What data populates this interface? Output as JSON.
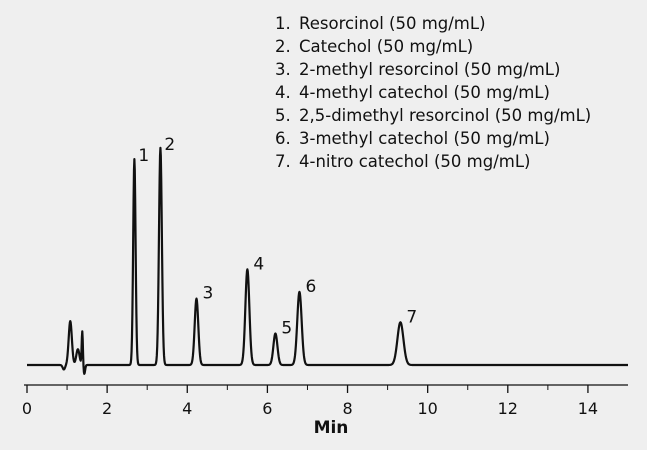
{
  "chart_data": {
    "type": "line",
    "title": "",
    "xlabel": "Min",
    "ylabel": "",
    "xlim": [
      0,
      15
    ],
    "x_ticks": [
      "0",
      "2",
      "4",
      "6",
      "8",
      "10",
      "12",
      "14"
    ],
    "grid": false,
    "legend_position": "top-right",
    "line_color": "#111111",
    "background_color": "#efefef",
    "peaks": [
      {
        "label": "1",
        "x": 2.68,
        "height": 0.915,
        "width": 0.03
      },
      {
        "label": "2",
        "x": 3.33,
        "height": 0.965,
        "width": 0.036
      },
      {
        "label": "3",
        "x": 4.23,
        "height": 0.295,
        "width": 0.045
      },
      {
        "label": "4",
        "x": 5.5,
        "height": 0.425,
        "width": 0.05
      },
      {
        "label": "5",
        "x": 6.2,
        "height": 0.14,
        "width": 0.05
      },
      {
        "label": "6",
        "x": 6.8,
        "height": 0.325,
        "width": 0.055
      },
      {
        "label": "7",
        "x": 9.32,
        "height": 0.19,
        "width": 0.075
      }
    ],
    "disturbances": [
      {
        "x": 0.92,
        "height": -0.02,
        "width": 0.03
      },
      {
        "x": 1.08,
        "height": 0.195,
        "width": 0.04
      },
      {
        "x": 1.27,
        "height": 0.07,
        "width": 0.04
      },
      {
        "x": 1.38,
        "height": 0.15,
        "width": 0.015
      },
      {
        "x": 1.43,
        "height": -0.04,
        "width": 0.02
      }
    ],
    "legend": [
      {
        "num": "1.",
        "text": "Resorcinol (50 mg/mL)"
      },
      {
        "num": "2.",
        "text": "Catechol (50 mg/mL)"
      },
      {
        "num": "3.",
        "text": "2-methyl resorcinol (50 mg/mL)"
      },
      {
        "num": "4.",
        "text": "4-methyl catechol (50 mg/mL)"
      },
      {
        "num": "5.",
        "text": "2,5-dimethyl resorcinol (50 mg/mL)"
      },
      {
        "num": "6.",
        "text": "3-methyl catechol (50 mg/mL)"
      },
      {
        "num": "7.",
        "text": "4-nitro catechol (50 mg/mL)"
      }
    ]
  }
}
